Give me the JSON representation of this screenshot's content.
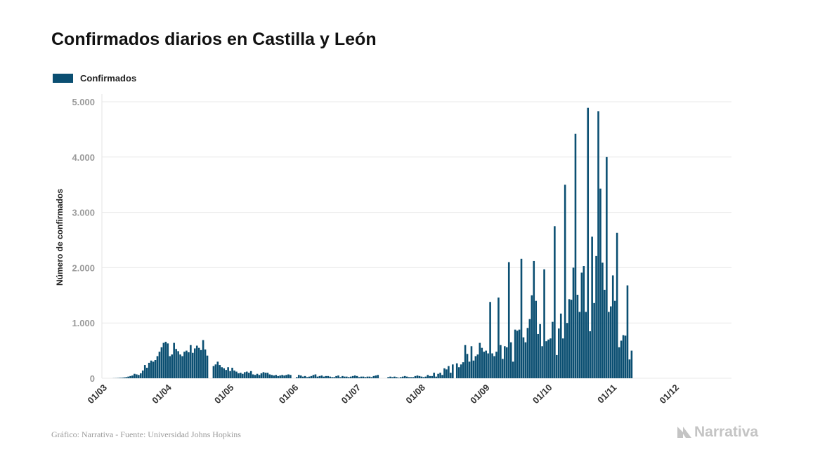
{
  "title": "Confirmados diarios en Castilla y León",
  "legend_label": "Confirmados",
  "footer_source": "Gráfico: Narrativa - Fuente: Universidad Johns Hopkins",
  "brand_name": "Narrativa",
  "colors": {
    "bar": "#0b4f72",
    "grid": "#e8e8e8",
    "brand": "#c4c4c4"
  },
  "chart_data": {
    "type": "bar",
    "title": "Confirmados diarios en Castilla y León",
    "ylabel": "Número de confirmados",
    "xlabel": "",
    "ylim": [
      0,
      5000
    ],
    "yticks": [
      0,
      1000,
      2000,
      3000,
      4000,
      5000
    ],
    "ytick_labels": [
      "0",
      "1.000",
      "2.000",
      "3.000",
      "4.000",
      "5.000"
    ],
    "xtick_labels": [
      "01/03",
      "01/04",
      "01/05",
      "01/06",
      "01/07",
      "01/08",
      "01/09",
      "01/10",
      "01/11",
      "01/12"
    ],
    "grid": true,
    "legend": "top-left",
    "series": [
      {
        "name": "Confirmados",
        "segments": [
          {
            "start": "2020-03-01",
            "values": [
              0,
              0,
              0,
              0,
              2,
              3,
              5,
              8,
              10,
              15,
              20,
              30,
              40,
              50,
              80,
              70,
              60,
              90,
              140,
              240,
              190,
              280,
              320,
              300,
              330,
              400,
              480,
              560,
              640,
              660,
              630,
              400,
              430,
              640,
              530,
              490,
              430,
              400,
              480,
              500,
              470,
              600,
              460,
              540,
              590,
              550,
              510,
              690,
              520,
              410
            ]
          },
          {
            "start": "2020-04-22",
            "values": [
              220,
              250,
              300,
              240,
              200,
              180,
              150,
              200,
              130,
              190,
              140,
              120,
              90,
              100,
              80,
              110,
              120,
              100,
              130,
              70,
              60,
              80,
              60,
              90,
              110,
              100,
              100,
              70,
              60,
              50,
              60,
              40,
              50,
              60,
              50,
              60,
              70,
              60
            ]
          },
          {
            "start": "2020-06-01",
            "values": [
              20,
              60,
              50,
              30,
              40,
              20,
              30,
              40,
              60,
              70,
              30,
              40,
              50,
              30,
              40,
              40,
              30,
              20,
              20,
              40,
              50,
              20,
              40,
              30,
              30,
              20,
              30,
              40,
              50,
              40,
              20,
              30,
              30,
              20,
              30,
              30,
              20,
              40,
              50,
              60
            ]
          },
          {
            "start": "2020-07-15",
            "values": [
              20,
              30,
              20,
              30,
              20,
              10,
              20,
              30,
              40,
              30,
              20,
              20,
              20,
              40,
              50,
              40,
              30,
              20,
              30,
              60,
              40,
              40,
              100,
              30,
              80,
              100,
              60,
              180,
              160,
              220,
              100,
              250
            ]
          },
          {
            "start": "2020-08-17",
            "values": [
              270,
              200,
              250,
              290,
              600,
              440,
              300,
              580,
              320,
              400,
              430,
              640,
              550,
              480,
              500,
              450,
              1380,
              450,
              400,
              480,
              1460,
              600,
              350,
              580,
              560,
              2100,
              650,
              300,
              880,
              860,
              880,
              2160,
              740,
              650,
              910,
              1070,
              1500,
              2120,
              1400,
              800,
              980,
              580,
              1970,
              670,
              700,
              720,
              1020,
              2750,
              420,
              900,
              1170,
              720,
              3500,
              1000,
              1430,
              1420,
              2000,
              4420,
              1510,
              1200,
              1910,
              2030,
              1200,
              4890,
              850,
              2560,
              1360,
              2210,
              4830,
              3430,
              2090,
              1600,
              4000,
              1200,
              1300,
              1860,
              1400,
              2630,
              560,
              680,
              780,
              770,
              1680,
              340,
              500
            ]
          }
        ]
      }
    ]
  }
}
